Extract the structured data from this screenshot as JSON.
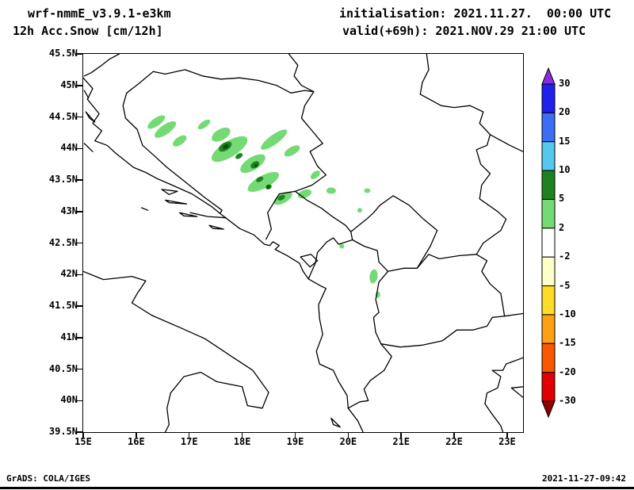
{
  "header": {
    "model": "wrf-nmmE_v3.9.1-e3km",
    "product": "12h Acc.Snow [cm/12h]",
    "init": "initialisation: 2021.11.27.  00:00 UTC",
    "valid": "valid(+69h): 2021.NOV.29 21:00 UTC"
  },
  "footer": {
    "left": "GrADS: COLA/IGES",
    "right": "2021-11-27-09:42"
  },
  "colors": {
    "border": "#000000",
    "snow_light": "#74da74",
    "snow_dark": "#1e821e",
    "snow_darkest": "#0b4f0b"
  },
  "colorbar": {
    "labels": [
      "30",
      "20",
      "15",
      "10",
      "5",
      "2",
      "-2",
      "-5",
      "-10",
      "-15",
      "-20",
      "-30"
    ],
    "segments": [
      "#2020ee",
      "#3c6ef5",
      "#55c8f0",
      "#1e821e",
      "#74da74",
      "#ffffff",
      "#ffffc8",
      "#ffdc28",
      "#ff9f14",
      "#f95700",
      "#e30000"
    ],
    "arrow_top": "#8a2be2",
    "arrow_bottom": "#8f0000"
  },
  "map": {
    "lon_range": [
      15,
      23.3
    ],
    "lat_range": [
      39.5,
      45.5
    ],
    "lon_labels": [
      "15E",
      "16E",
      "17E",
      "18E",
      "19E",
      "20E",
      "21E",
      "22E",
      "23E"
    ],
    "lat_labels": [
      "45.5N",
      "45N",
      "44.5N",
      "44N",
      "43.5N",
      "43N",
      "42.5N",
      "42N",
      "41.5N",
      "41N",
      "40.5N",
      "40N",
      "39.5N"
    ],
    "snow_patches": {
      "light": [
        [
          16.38,
          44.42,
          13,
          5,
          -35
        ],
        [
          16.55,
          44.3,
          16,
          6,
          -35
        ],
        [
          16.82,
          44.12,
          10,
          5,
          -35
        ],
        [
          17.28,
          44.38,
          9,
          4,
          -35
        ],
        [
          17.6,
          44.22,
          13,
          7,
          -30
        ],
        [
          17.76,
          43.99,
          26,
          10,
          -32
        ],
        [
          18.2,
          43.76,
          18,
          8,
          -32
        ],
        [
          18.6,
          44.14,
          20,
          6,
          -36
        ],
        [
          18.94,
          43.96,
          11,
          5,
          -30
        ],
        [
          18.4,
          43.47,
          22,
          8,
          -28
        ],
        [
          18.77,
          43.21,
          13,
          6,
          -30
        ],
        [
          19.18,
          43.28,
          9,
          5,
          -20
        ],
        [
          19.38,
          43.58,
          7,
          4,
          -40
        ],
        [
          19.68,
          43.33,
          6,
          4,
          0
        ],
        [
          20.36,
          43.33,
          4,
          3,
          0
        ],
        [
          20.22,
          43.02,
          3,
          3,
          0
        ],
        [
          19.88,
          42.45,
          3,
          3,
          0
        ],
        [
          20.48,
          41.97,
          5,
          9,
          8
        ],
        [
          20.56,
          41.68,
          3,
          4,
          0
        ]
      ],
      "dark": [
        [
          17.68,
          44.03,
          9,
          5,
          -32
        ],
        [
          17.94,
          43.88,
          5,
          3,
          -32
        ],
        [
          18.24,
          43.74,
          6,
          4,
          -32
        ],
        [
          18.33,
          43.51,
          5,
          3,
          -28
        ],
        [
          18.5,
          43.39,
          4,
          3,
          -28
        ],
        [
          18.74,
          43.22,
          5,
          3,
          -30
        ]
      ],
      "darkest": [
        [
          17.69,
          44.03,
          4,
          2.5,
          -32
        ],
        [
          18.26,
          43.73,
          2.5,
          2,
          -32
        ],
        [
          18.49,
          43.39,
          2,
          2,
          0
        ]
      ]
    },
    "borders": [
      [
        [
          15.0,
          45.12
        ],
        [
          15.18,
          44.95
        ],
        [
          15.08,
          44.78
        ],
        [
          15.3,
          44.55
        ],
        [
          15.18,
          44.4
        ],
        [
          15.35,
          44.28
        ],
        [
          15.22,
          44.12
        ],
        [
          15.45,
          44.05
        ],
        [
          15.62,
          43.92
        ],
        [
          15.95,
          43.7
        ],
        [
          16.18,
          43.62
        ],
        [
          16.4,
          43.52
        ],
        [
          16.65,
          43.43
        ],
        [
          17.05,
          43.28
        ],
        [
          17.42,
          43.08
        ],
        [
          17.58,
          42.97
        ],
        [
          17.95,
          42.73
        ],
        [
          18.22,
          42.63
        ],
        [
          18.42,
          42.48
        ],
        [
          18.52,
          42.46
        ],
        [
          18.58,
          42.52
        ],
        [
          18.7,
          42.46
        ],
        [
          18.62,
          42.4
        ],
        [
          18.85,
          42.3
        ],
        [
          19.08,
          42.18
        ],
        [
          19.15,
          42.05
        ],
        [
          19.25,
          41.93
        ],
        [
          19.48,
          41.82
        ],
        [
          19.58,
          41.78
        ],
        [
          19.44,
          41.52
        ],
        [
          19.46,
          41.3
        ],
        [
          19.52,
          41.05
        ],
        [
          19.4,
          40.78
        ],
        [
          19.46,
          40.58
        ],
        [
          19.72,
          40.48
        ],
        [
          19.82,
          40.3
        ],
        [
          19.98,
          40.08
        ],
        [
          20.0,
          39.88
        ],
        [
          20.18,
          39.68
        ],
        [
          20.28,
          39.5
        ]
      ],
      [
        [
          15.0,
          42.05
        ],
        [
          15.38,
          41.92
        ],
        [
          15.92,
          41.97
        ],
        [
          16.18,
          41.9
        ],
        [
          16.02,
          41.7
        ],
        [
          15.92,
          41.55
        ],
        [
          16.3,
          41.35
        ],
        [
          16.85,
          41.15
        ],
        [
          17.3,
          40.98
        ],
        [
          17.8,
          40.7
        ],
        [
          18.2,
          40.48
        ],
        [
          18.5,
          40.13
        ],
        [
          18.38,
          39.88
        ],
        [
          18.1,
          39.92
        ],
        [
          18.0,
          40.22
        ],
        [
          17.52,
          40.3
        ],
        [
          17.22,
          40.45
        ],
        [
          16.9,
          40.38
        ],
        [
          16.65,
          40.12
        ],
        [
          16.58,
          39.88
        ],
        [
          16.62,
          39.62
        ],
        [
          16.55,
          39.5
        ]
      ],
      [
        [
          15.68,
          45.5
        ],
        [
          15.5,
          45.42
        ],
        [
          15.35,
          45.32
        ],
        [
          15.15,
          45.2
        ],
        [
          15.02,
          45.15
        ]
      ],
      [
        [
          16.32,
          45.22
        ],
        [
          16.55,
          45.18
        ],
        [
          16.92,
          45.25
        ],
        [
          17.25,
          45.15
        ],
        [
          17.6,
          45.1
        ],
        [
          17.95,
          45.12
        ],
        [
          18.3,
          45.08
        ],
        [
          18.65,
          45.0
        ],
        [
          18.92,
          44.88
        ],
        [
          19.18,
          44.92
        ],
        [
          19.35,
          44.9
        ]
      ],
      [
        [
          18.88,
          45.5
        ],
        [
          19.05,
          45.32
        ],
        [
          18.98,
          45.15
        ],
        [
          19.12,
          45.0
        ],
        [
          19.35,
          44.9
        ]
      ],
      [
        [
          19.35,
          44.9
        ],
        [
          19.18,
          44.68
        ],
        [
          19.12,
          44.48
        ],
        [
          19.32,
          44.28
        ],
        [
          19.52,
          44.08
        ],
        [
          19.28,
          43.95
        ],
        [
          19.42,
          43.72
        ],
        [
          19.58,
          43.58
        ],
        [
          19.32,
          43.42
        ],
        [
          19.0,
          43.32
        ],
        [
          18.7,
          43.28
        ],
        [
          18.48,
          42.98
        ],
        [
          18.55,
          42.72
        ],
        [
          18.45,
          42.56
        ]
      ],
      [
        [
          16.32,
          45.22
        ],
        [
          16.05,
          45.03
        ],
        [
          15.82,
          44.88
        ],
        [
          15.75,
          44.68
        ],
        [
          15.8,
          44.48
        ],
        [
          16.02,
          44.3
        ],
        [
          16.12,
          44.05
        ],
        [
          16.32,
          43.9
        ],
        [
          16.58,
          43.7
        ],
        [
          16.88,
          43.5
        ],
        [
          17.28,
          43.23
        ],
        [
          17.62,
          43.02
        ],
        [
          17.58,
          42.97
        ]
      ],
      [
        [
          21.36,
          44.86
        ],
        [
          21.4,
          45.05
        ],
        [
          21.52,
          45.25
        ],
        [
          21.48,
          45.5
        ]
      ],
      [
        [
          21.36,
          44.86
        ],
        [
          21.6,
          44.75
        ],
        [
          21.75,
          44.68
        ],
        [
          22.0,
          44.65
        ],
        [
          22.3,
          44.68
        ],
        [
          22.55,
          44.58
        ],
        [
          22.48,
          44.4
        ],
        [
          22.68,
          44.22
        ],
        [
          22.62,
          44.05
        ],
        [
          22.42,
          43.98
        ],
        [
          22.5,
          43.75
        ],
        [
          22.68,
          43.6
        ],
        [
          22.52,
          43.42
        ],
        [
          22.48,
          43.2
        ],
        [
          22.82,
          43.0
        ],
        [
          22.98,
          42.88
        ],
        [
          22.88,
          42.7
        ],
        [
          22.55,
          42.5
        ],
        [
          22.42,
          42.32
        ]
      ],
      [
        [
          22.68,
          44.22
        ],
        [
          23.05,
          44.05
        ],
        [
          23.3,
          43.95
        ]
      ],
      [
        [
          22.42,
          42.32
        ],
        [
          22.1,
          42.3
        ],
        [
          21.72,
          42.25
        ],
        [
          21.52,
          42.32
        ],
        [
          21.3,
          42.1
        ]
      ],
      [
        [
          21.3,
          42.1
        ],
        [
          21.05,
          42.1
        ],
        [
          20.75,
          42.05
        ]
      ],
      [
        [
          20.85,
          43.25
        ],
        [
          21.15,
          43.1
        ],
        [
          21.42,
          42.88
        ],
        [
          21.68,
          42.7
        ],
        [
          21.55,
          42.45
        ],
        [
          21.3,
          42.1
        ]
      ],
      [
        [
          20.85,
          43.25
        ],
        [
          20.6,
          43.1
        ],
        [
          20.48,
          42.98
        ],
        [
          20.35,
          42.88
        ],
        [
          20.05,
          42.68
        ],
        [
          20.08,
          42.55
        ]
      ],
      [
        [
          20.08,
          42.55
        ],
        [
          20.3,
          42.45
        ],
        [
          20.55,
          42.38
        ],
        [
          20.58,
          42.2
        ],
        [
          20.75,
          42.05
        ]
      ],
      [
        [
          19.0,
          43.32
        ],
        [
          19.22,
          43.18
        ],
        [
          19.5,
          43.05
        ],
        [
          19.7,
          42.92
        ],
        [
          19.95,
          42.78
        ],
        [
          20.05,
          42.68
        ]
      ],
      [
        [
          20.08,
          42.55
        ],
        [
          19.82,
          42.48
        ],
        [
          19.72,
          42.58
        ],
        [
          19.6,
          42.52
        ],
        [
          19.42,
          42.35
        ],
        [
          19.38,
          42.18
        ],
        [
          19.25,
          41.93
        ]
      ],
      [
        [
          20.75,
          42.05
        ],
        [
          20.58,
          41.88
        ],
        [
          20.52,
          41.6
        ],
        [
          20.58,
          41.4
        ],
        [
          20.48,
          41.32
        ],
        [
          20.52,
          41.08
        ],
        [
          20.62,
          40.9
        ]
      ],
      [
        [
          20.62,
          40.9
        ],
        [
          20.82,
          40.7
        ],
        [
          20.68,
          40.48
        ],
        [
          20.42,
          40.32
        ],
        [
          20.3,
          40.18
        ],
        [
          20.38,
          40.0
        ],
        [
          20.22,
          39.98
        ],
        [
          20.0,
          39.88
        ]
      ],
      [
        [
          20.62,
          40.9
        ],
        [
          20.98,
          40.85
        ],
        [
          21.4,
          40.88
        ],
        [
          21.78,
          40.95
        ],
        [
          22.05,
          41.12
        ],
        [
          22.35,
          41.12
        ],
        [
          22.62,
          41.18
        ],
        [
          22.72,
          41.32
        ],
        [
          22.95,
          41.34
        ],
        [
          23.3,
          41.38
        ]
      ],
      [
        [
          22.42,
          42.32
        ],
        [
          22.62,
          42.22
        ],
        [
          22.52,
          42.05
        ],
        [
          22.68,
          41.85
        ],
        [
          22.88,
          41.7
        ],
        [
          22.92,
          41.5
        ],
        [
          22.95,
          41.34
        ]
      ],
      [
        [
          23.3,
          40.68
        ],
        [
          22.98,
          40.58
        ],
        [
          22.92,
          40.48
        ],
        [
          22.72,
          40.48
        ],
        [
          22.88,
          40.38
        ],
        [
          22.82,
          40.2
        ],
        [
          22.62,
          40.12
        ],
        [
          22.58,
          39.95
        ],
        [
          22.72,
          39.78
        ],
        [
          22.88,
          39.6
        ],
        [
          22.92,
          39.5
        ]
      ],
      [
        [
          23.3,
          40.22
        ],
        [
          23.08,
          40.2
        ],
        [
          23.3,
          40.05
        ]
      ],
      [
        [
          19.1,
          42.28
        ],
        [
          19.3,
          42.32
        ],
        [
          19.42,
          42.22
        ],
        [
          19.28,
          42.12
        ],
        [
          19.1,
          42.28
        ]
      ],
      [
        [
          17.02,
          42.98
        ],
        [
          17.35,
          42.92
        ],
        [
          17.7,
          42.9
        ]
      ],
      [
        [
          15.05,
          44.58
        ],
        [
          15.22,
          44.42
        ],
        [
          15.12,
          44.48
        ],
        [
          15.05,
          44.58
        ]
      ],
      [
        [
          15.02,
          44.92
        ],
        [
          15.1,
          44.8
        ]
      ],
      [
        [
          15.02,
          44.08
        ],
        [
          15.18,
          43.95
        ]
      ],
      [
        [
          16.48,
          43.35
        ],
        [
          16.78,
          43.32
        ],
        [
          16.62,
          43.27
        ],
        [
          16.48,
          43.35
        ]
      ],
      [
        [
          16.55,
          43.18
        ],
        [
          16.95,
          43.12
        ],
        [
          16.62,
          43.14
        ],
        [
          16.55,
          43.18
        ]
      ],
      [
        [
          16.82,
          42.98
        ],
        [
          17.15,
          42.92
        ],
        [
          16.9,
          42.93
        ],
        [
          16.82,
          42.98
        ]
      ],
      [
        [
          17.38,
          42.78
        ],
        [
          17.65,
          42.72
        ],
        [
          17.45,
          42.73
        ],
        [
          17.38,
          42.78
        ]
      ],
      [
        [
          16.1,
          43.06
        ],
        [
          16.22,
          43.02
        ],
        [
          16.1,
          43.06
        ]
      ],
      [
        [
          19.68,
          39.72
        ],
        [
          19.85,
          39.58
        ],
        [
          19.72,
          39.62
        ],
        [
          19.68,
          39.72
        ]
      ]
    ]
  }
}
